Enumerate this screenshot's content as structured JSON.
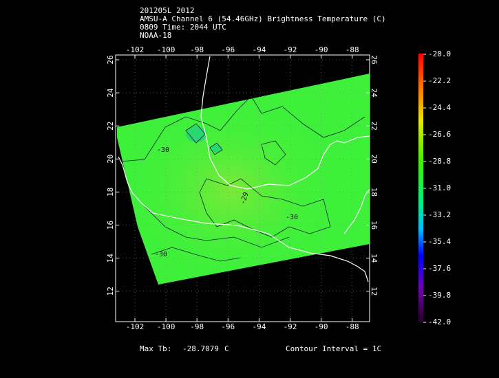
{
  "header": {
    "lines": [
      "201205L 2012",
      "AMSU-A Channel 6 (54.46GHz) Brightness Temperature (C)",
      "0809 Time: 2044 UTC",
      "NOAA-18"
    ]
  },
  "map": {
    "lon_ticks": [
      -102,
      -100,
      -98,
      -96,
      -94,
      -92,
      -90,
      -88
    ],
    "lat_ticks": [
      26,
      24,
      22,
      20,
      18,
      16,
      14,
      12
    ],
    "contour_labels": [
      "-30",
      "-29",
      "-30",
      "-30"
    ]
  },
  "colorbar": {
    "labels": [
      "-20.0",
      "-22.2",
      "-24.4",
      "-26.6",
      "-28.8",
      "-31.0",
      "-33.2",
      "-35.4",
      "-37.6",
      "-39.8",
      "-42.0"
    ]
  },
  "footer": {
    "max_label": "Max Tb:",
    "max_value": "-28.7079",
    "unit": "C",
    "contour": "Contour Interval = 1C"
  }
}
